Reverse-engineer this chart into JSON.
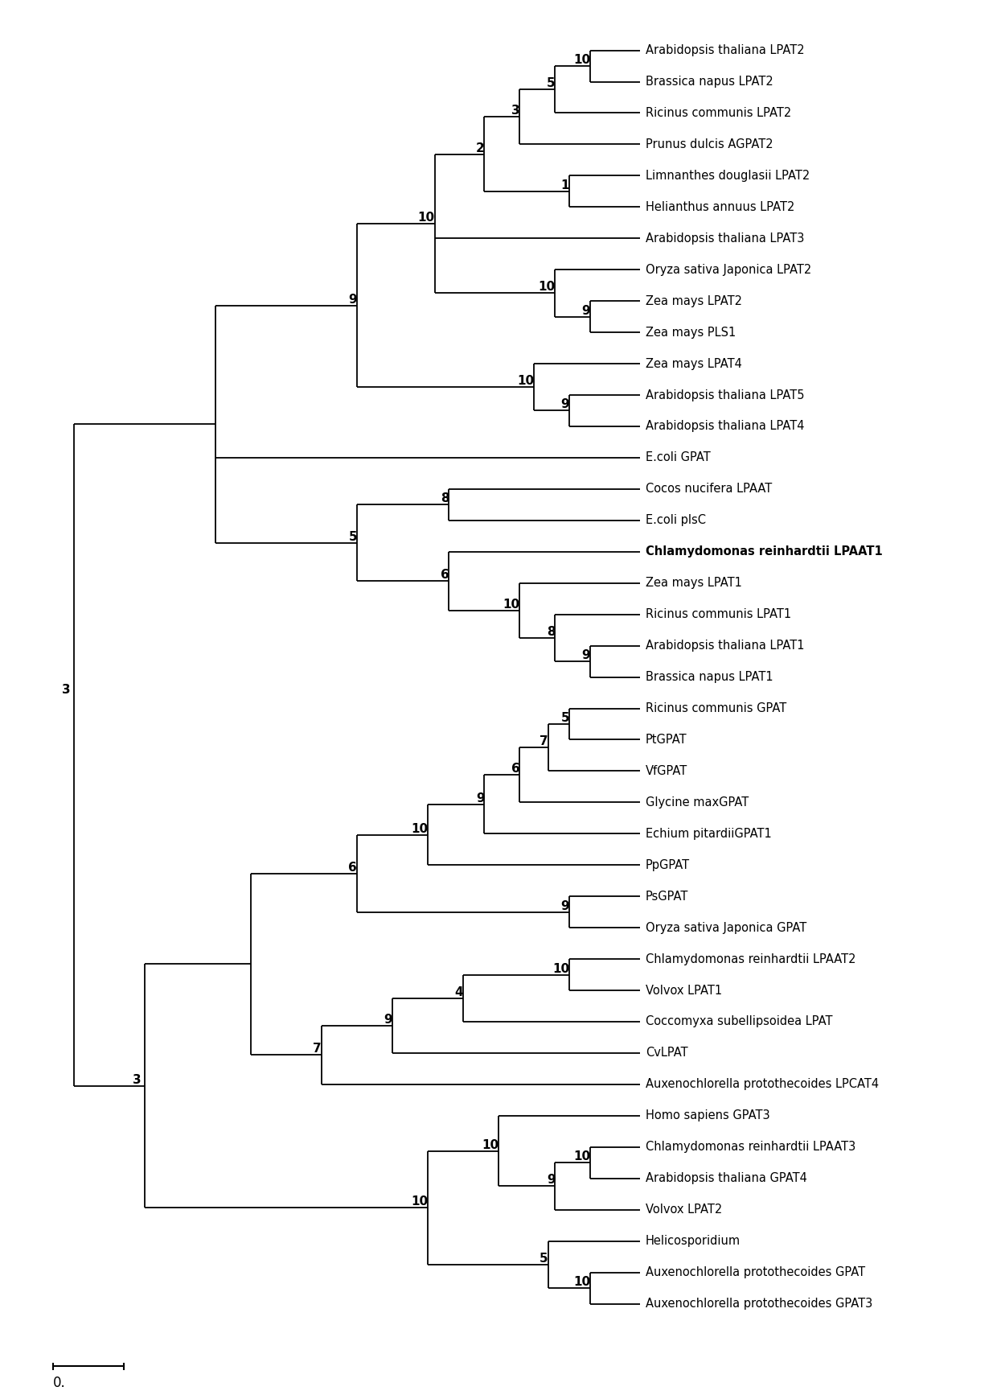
{
  "background_color": "#ffffff",
  "scale_bar_label": "0.",
  "taxa": [
    "Arabidopsis thaliana LPAT2",
    "Brassica napus LPAT2",
    "Ricinus communis LPAT2",
    "Prunus dulcis AGPAT2",
    "Limnanthes douglasii LPAT2",
    "Helianthus annuus LPAT2",
    "Arabidopsis thaliana LPAT3",
    "Oryza sativa Japonica LPAT2",
    "Zea mays LPAT2",
    "Zea mays PLS1",
    "Zea mays LPAT4",
    "Arabidopsis thaliana LPAT5",
    "Arabidopsis thaliana LPAT4",
    "E.coli GPAT",
    "Cocos nucifera LPAAT",
    "E.coli plsC",
    "Chlamydomonas reinhardtii LPAAT1",
    "Zea mays LPAT1",
    "Ricinus communis LPAT1",
    "Arabidopsis thaliana LPAT1",
    "Brassica napus LPAT1",
    "Ricinus communis GPAT",
    "PtGPAT",
    "VfGPAT",
    "Glycine maxGPAT",
    "Echium pitardiiGPAT1",
    "PpGPAT",
    "PsGPAT",
    "Oryza sativa Japonica GPAT",
    "Chlamydomonas reinhardtii LPAAT2",
    "Volvox LPAT1",
    "Coccomyxa subellipsoidea LPAT",
    "CvLPAT",
    "Auxenochlorella protothecoides LPCAT4",
    "Homo sapiens GPAT3",
    "Chlamydomonas reinhardtii LPAAT3",
    "Arabidopsis thaliana GPAT4",
    "Volvox LPAT2",
    "Helicosporidium",
    "Auxenochlorella protothecoides GPAT",
    "Auxenochlorella protothecoides GPAT3"
  ],
  "bold_taxa": [
    "Chlamydomonas reinhardtii LPAAT1"
  ],
  "line_color": "#000000",
  "label_fontsize": 10.5,
  "bootstrap_fontsize": 11
}
